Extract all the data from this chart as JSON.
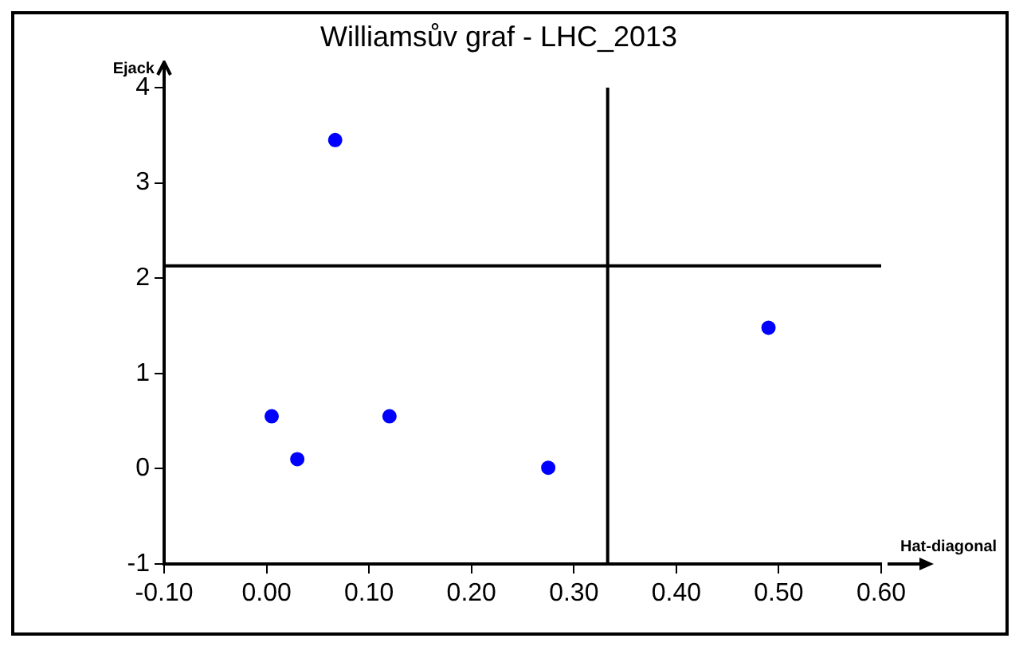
{
  "chart_data": {
    "type": "scatter",
    "title": "Williamsův graf - LHC_2013",
    "xlabel": "Hat-diagonal",
    "ylabel": "Ejack",
    "x": [
      0.005,
      0.03,
      0.067,
      0.12,
      0.275,
      0.49
    ],
    "series": [
      {
        "color": "#0000ff",
        "values": [
          0.55,
          0.1,
          3.45,
          0.55,
          0.01,
          1.48
        ]
      }
    ],
    "marker": "circle",
    "xlim": [
      -0.1,
      0.6
    ],
    "xticks": [
      {
        "value": -0.1,
        "label": "-0.10"
      },
      {
        "value": 0,
        "label": "0.00"
      },
      {
        "value": 0.1,
        "label": "0.10"
      },
      {
        "value": 0.2,
        "label": "0.20"
      },
      {
        "value": 0.3,
        "label": "0.30"
      },
      {
        "value": 0.4,
        "label": "0.40"
      },
      {
        "value": 0.5,
        "label": "0.50"
      },
      {
        "value": 0.6,
        "label": "0.60"
      }
    ],
    "ylim": [
      -1,
      4
    ],
    "yticks": [
      -1,
      0,
      1,
      2,
      3,
      4
    ],
    "ref_lines": [
      {
        "axis": "y",
        "value": 2.13,
        "color": "#000000"
      },
      {
        "axis": "x",
        "value": 0.333,
        "color": "#000000"
      }
    ],
    "grid": false,
    "legend": false
  }
}
